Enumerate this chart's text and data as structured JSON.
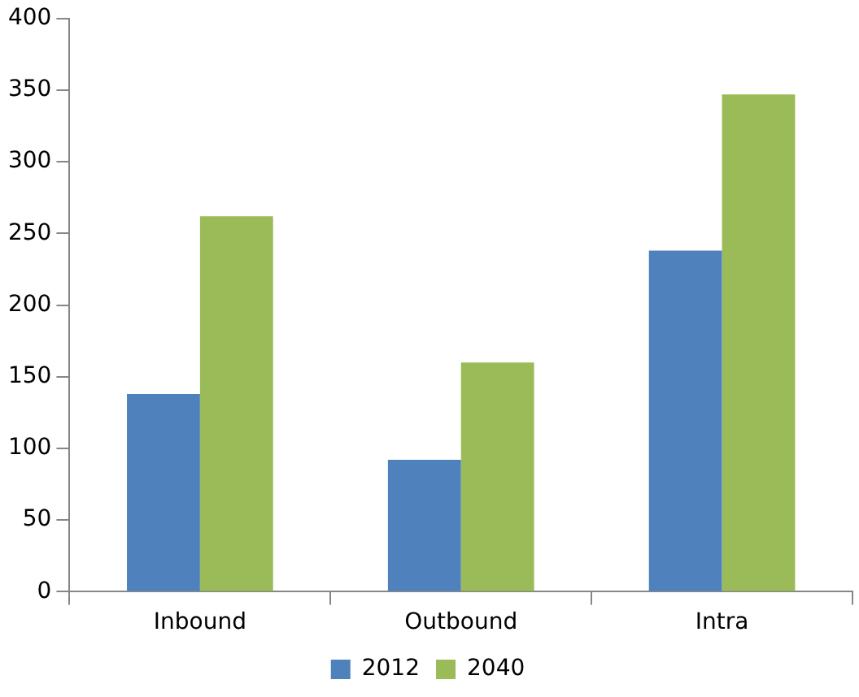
{
  "chart_data": {
    "type": "bar",
    "categories": [
      "Inbound",
      "Outbound",
      "Intra"
    ],
    "series": [
      {
        "name": "2012",
        "color": "#4f81bd",
        "values": [
          138,
          92,
          238
        ]
      },
      {
        "name": "2040",
        "color": "#9bbb59",
        "values": [
          262,
          160,
          347
        ]
      }
    ],
    "ylim": [
      0,
      400
    ],
    "yticks": [
      0,
      50,
      100,
      150,
      200,
      250,
      300,
      350,
      400
    ],
    "grid": false,
    "legend": "bottom"
  }
}
